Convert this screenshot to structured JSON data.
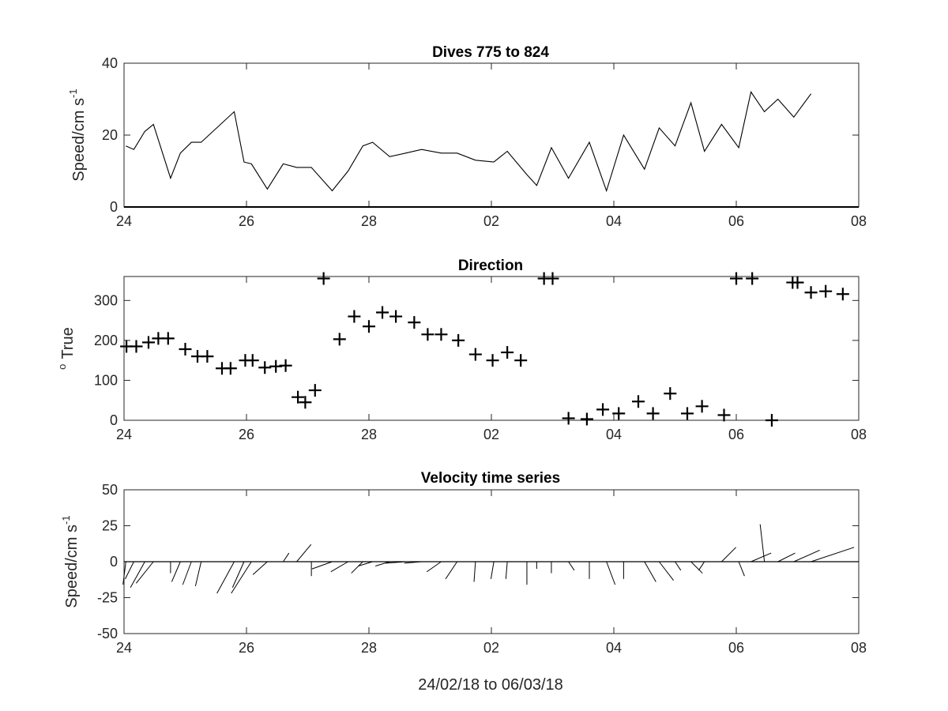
{
  "figure": {
    "xlabel": "24/02/18 to 06/03/18"
  },
  "chart_data": [
    {
      "id": "speed",
      "type": "line",
      "title": "Dives 775 to 824",
      "ylabel": "Speed/cm s",
      "ylabel_sup": "-1",
      "x_unit": "days from 24/02/18",
      "xlim": [
        0,
        12
      ],
      "ylim": [
        0,
        40
      ],
      "xticks": [
        0,
        2,
        4,
        6,
        8,
        10,
        12
      ],
      "xticklabels": [
        "24",
        "26",
        "28",
        "02",
        "04",
        "06",
        "08"
      ],
      "yticks": [
        0,
        20,
        40
      ],
      "yticklabels": [
        "0",
        "20",
        "40"
      ],
      "x": [
        0.03,
        0.16,
        0.34,
        0.48,
        0.76,
        0.92,
        1.1,
        1.26,
        1.8,
        1.96,
        2.08,
        2.34,
        2.6,
        2.82,
        3.06,
        3.4,
        3.66,
        3.9,
        4.06,
        4.34,
        4.6,
        4.86,
        5.18,
        5.44,
        5.74,
        6.04,
        6.26,
        6.58,
        6.74,
        6.98,
        7.26,
        7.6,
        7.88,
        8.16,
        8.5,
        8.74,
        9.0,
        9.26,
        9.48,
        9.76,
        10.04,
        10.24,
        10.46,
        10.68,
        10.94,
        11.22
      ],
      "y": [
        17,
        16,
        21,
        23,
        8,
        15,
        18,
        18,
        26.5,
        12.5,
        12,
        5,
        12,
        11,
        11,
        4.5,
        10,
        17,
        18,
        14,
        15,
        16,
        15,
        15,
        13,
        12.5,
        15.5,
        9,
        6,
        16.5,
        8,
        18,
        4.5,
        20,
        10.5,
        22,
        17,
        29,
        15.5,
        23,
        16.5,
        32,
        26.5,
        30,
        25,
        31.5
      ]
    },
    {
      "id": "direction",
      "type": "scatter",
      "title": "Direction",
      "ylabel": "True",
      "ylabel_sup": "o",
      "marker": "plus",
      "x_unit": "days from 24/02/18",
      "xlim": [
        0,
        12
      ],
      "ylim": [
        0,
        360
      ],
      "xticks": [
        0,
        2,
        4,
        6,
        8,
        10,
        12
      ],
      "xticklabels": [
        "24",
        "26",
        "28",
        "02",
        "04",
        "06",
        "08"
      ],
      "yticks": [
        0,
        100,
        200,
        300
      ],
      "yticklabels": [
        "0",
        "100",
        "200",
        "300"
      ],
      "x": [
        0.04,
        0.2,
        0.4,
        0.56,
        0.72,
        1.0,
        1.2,
        1.36,
        1.6,
        1.74,
        1.98,
        2.1,
        2.3,
        2.48,
        2.64,
        2.84,
        2.96,
        3.12,
        3.26,
        3.52,
        3.76,
        4.0,
        4.22,
        4.44,
        4.74,
        4.96,
        5.18,
        5.46,
        5.74,
        6.02,
        6.26,
        6.48,
        6.86,
        7.0,
        7.26,
        7.56,
        7.82,
        8.08,
        8.4,
        8.64,
        8.92,
        9.2,
        9.44,
        9.8,
        10.0,
        10.26,
        10.58,
        10.92,
        11.0,
        11.22,
        11.46,
        11.74
      ],
      "y": [
        185,
        185,
        195,
        205,
        205,
        178,
        160,
        160,
        130,
        130,
        150,
        150,
        132,
        135,
        137,
        58,
        45,
        75,
        355,
        203,
        260,
        235,
        270,
        260,
        245,
        215,
        215,
        200,
        165,
        150,
        170,
        150,
        355,
        355,
        5,
        3,
        27,
        17,
        47,
        17,
        67,
        17,
        35,
        13,
        355,
        355,
        0,
        345,
        345,
        320,
        323,
        316
      ]
    },
    {
      "id": "velocity",
      "type": "stick",
      "title": "Velocity time series",
      "ylabel": "Speed/cm s",
      "ylabel_sup": "-1",
      "x_unit": "days from 24/02/18",
      "xlim": [
        0,
        12
      ],
      "ylim": [
        -50,
        50
      ],
      "xticks": [
        0,
        2,
        4,
        6,
        8,
        10,
        12
      ],
      "xticklabels": [
        "24",
        "26",
        "28",
        "02",
        "04",
        "06",
        "08"
      ],
      "yticks": [
        -50,
        -25,
        0,
        25,
        50
      ],
      "yticklabels": [
        "-50",
        "-25",
        "0",
        "25",
        "50"
      ],
      "x": [
        0.03,
        0.16,
        0.34,
        0.48,
        0.76,
        0.92,
        1.1,
        1.26,
        1.8,
        1.96,
        2.08,
        2.34,
        2.6,
        2.82,
        3.06,
        3.4,
        3.66,
        3.9,
        4.06,
        4.34,
        4.6,
        4.86,
        5.18,
        5.44,
        5.74,
        6.04,
        6.26,
        6.58,
        6.74,
        6.98,
        7.26,
        7.6,
        7.88,
        8.16,
        8.5,
        8.74,
        9.0,
        9.26,
        9.48,
        9.76,
        10.04,
        10.24,
        10.46,
        10.68,
        10.94,
        11.22
      ],
      "u": [
        -2,
        -6,
        -10,
        -12,
        0,
        -6,
        -6,
        -4,
        -12,
        -8,
        -14,
        -10,
        4,
        10,
        0,
        -14,
        -12,
        -8,
        -10,
        -10,
        -14,
        -12,
        -10,
        -8,
        -1,
        -2,
        -1,
        0,
        0,
        0,
        4,
        0,
        6,
        0,
        8,
        10,
        4,
        8,
        -4,
        10,
        4,
        14,
        -3,
        12,
        18,
        30
      ],
      "v": [
        -16,
        -12,
        -18,
        -15,
        -8,
        -14,
        -16,
        -17,
        -22,
        -18,
        -22,
        -9,
        6,
        12,
        -10,
        -5,
        -7,
        -8,
        -3,
        -3,
        -1,
        -1,
        -7,
        -12,
        -14,
        -12,
        -12,
        -16,
        -5,
        -8,
        -6,
        -12,
        -16,
        -12,
        -14,
        -13,
        -6,
        -8,
        -6,
        10,
        -10,
        6,
        26,
        6,
        8,
        10
      ]
    }
  ]
}
